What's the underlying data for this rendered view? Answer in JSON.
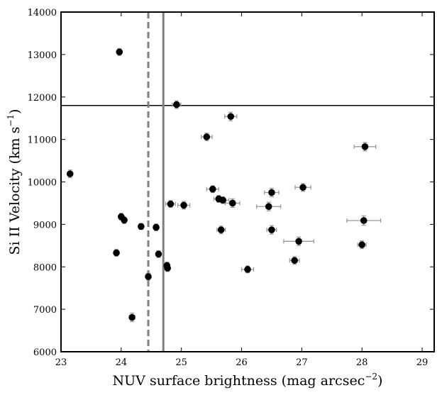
{
  "chart_data": {
    "type": "scatter",
    "title": "",
    "xlabel": "NUV surface brightness (mag arcsec",
    "xlabel_sup": "−2",
    "xlabel_end": ")",
    "ylabel": "Si II Velocity (km s",
    "ylabel_sup": "−1",
    "ylabel_end": ")",
    "xlim": [
      23,
      29.2
    ],
    "ylim": [
      6000,
      14000
    ],
    "xticks": [
      "23",
      "24",
      "25",
      "26",
      "27",
      "28",
      "29"
    ],
    "yticks": [
      "6000",
      "7000",
      "8000",
      "9000",
      "10000",
      "11000",
      "12000",
      "13000",
      "14000"
    ],
    "grid": false,
    "reference_lines": [
      {
        "orientation": "horizontal",
        "y": 11800,
        "color": "#000000",
        "style": "solid"
      },
      {
        "orientation": "vertical",
        "x": 24.45,
        "color": "#808080",
        "style": "dashed"
      },
      {
        "orientation": "vertical",
        "x": 24.7,
        "color": "#808080",
        "style": "solid"
      }
    ],
    "marker_color": "#000000",
    "errorbar_color": "#999999",
    "points": [
      {
        "x": 23.15,
        "y": 10190,
        "xerr": 0.04,
        "yerr": 90
      },
      {
        "x": 23.92,
        "y": 8330,
        "xerr": 0.04,
        "yerr": 80
      },
      {
        "x": 23.97,
        "y": 13060,
        "xerr": 0.04,
        "yerr": 80
      },
      {
        "x": 24.0,
        "y": 9180,
        "xerr": 0.04,
        "yerr": 80
      },
      {
        "x": 24.05,
        "y": 9100,
        "xerr": 0.04,
        "yerr": 80
      },
      {
        "x": 24.18,
        "y": 6810,
        "xerr": 0.04,
        "yerr": 100
      },
      {
        "x": 24.33,
        "y": 8950,
        "xerr": 0.04,
        "yerr": 70
      },
      {
        "x": 24.45,
        "y": 7770,
        "xerr": 0.04,
        "yerr": 80
      },
      {
        "x": 24.58,
        "y": 8930,
        "xerr": 0.04,
        "yerr": 80
      },
      {
        "x": 24.62,
        "y": 8300,
        "xerr": 0.04,
        "yerr": 80
      },
      {
        "x": 24.76,
        "y": 8030,
        "xerr": 0.03,
        "yerr": 80
      },
      {
        "x": 24.77,
        "y": 7970,
        "xerr": 0.03,
        "yerr": 80
      },
      {
        "x": 24.82,
        "y": 9480,
        "xerr": 0.08,
        "yerr": 80
      },
      {
        "x": 24.92,
        "y": 11820,
        "xerr": 0.07,
        "yerr": 90
      },
      {
        "x": 25.04,
        "y": 9450,
        "xerr": 0.1,
        "yerr": 90
      },
      {
        "x": 25.42,
        "y": 11060,
        "xerr": 0.09,
        "yerr": 90
      },
      {
        "x": 25.52,
        "y": 9830,
        "xerr": 0.1,
        "yerr": 80
      },
      {
        "x": 25.62,
        "y": 9600,
        "xerr": 0.08,
        "yerr": 80
      },
      {
        "x": 25.66,
        "y": 8870,
        "xerr": 0.07,
        "yerr": 90
      },
      {
        "x": 25.69,
        "y": 9570,
        "xerr": 0.1,
        "yerr": 80
      },
      {
        "x": 25.82,
        "y": 11540,
        "xerr": 0.1,
        "yerr": 100
      },
      {
        "x": 25.85,
        "y": 9500,
        "xerr": 0.12,
        "yerr": 100
      },
      {
        "x": 26.1,
        "y": 7940,
        "xerr": 0.1,
        "yerr": 80
      },
      {
        "x": 26.45,
        "y": 9420,
        "xerr": 0.2,
        "yerr": 100
      },
      {
        "x": 26.5,
        "y": 9750,
        "xerr": 0.12,
        "yerr": 100
      },
      {
        "x": 26.5,
        "y": 8870,
        "xerr": 0.08,
        "yerr": 100
      },
      {
        "x": 26.88,
        "y": 8150,
        "xerr": 0.08,
        "yerr": 90
      },
      {
        "x": 26.95,
        "y": 8600,
        "xerr": 0.25,
        "yerr": 100
      },
      {
        "x": 27.02,
        "y": 9870,
        "xerr": 0.13,
        "yerr": 90
      },
      {
        "x": 28.0,
        "y": 8520,
        "xerr": 0.07,
        "yerr": 90
      },
      {
        "x": 28.03,
        "y": 9090,
        "xerr": 0.28,
        "yerr": 110
      },
      {
        "x": 28.05,
        "y": 10830,
        "xerr": 0.18,
        "yerr": 100
      }
    ]
  }
}
